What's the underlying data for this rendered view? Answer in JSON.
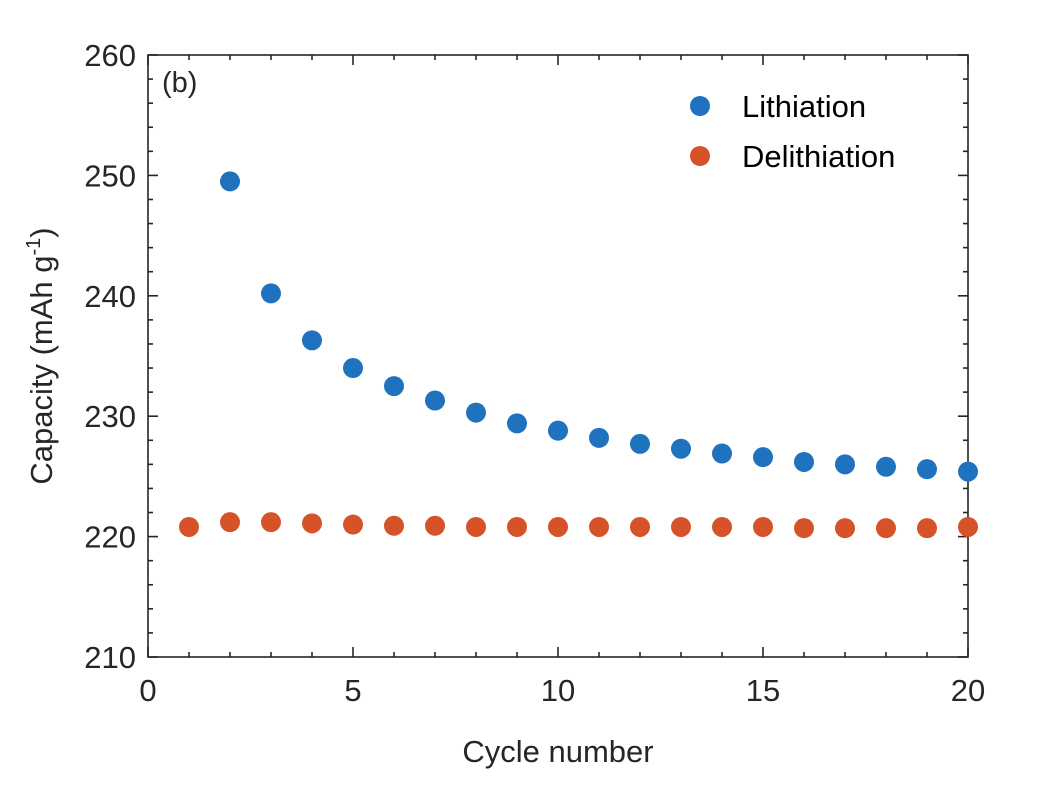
{
  "chart_data": {
    "type": "scatter",
    "panel_label": "(b)",
    "xlabel": "Cycle number",
    "ylabel_main": "Capacity (mAh g",
    "ylabel_sup": "-1",
    "ylabel_close": ")",
    "xlim": [
      0,
      20
    ],
    "ylim": [
      210,
      260
    ],
    "x_ticks": [
      0,
      5,
      10,
      15,
      20
    ],
    "y_ticks": [
      210,
      220,
      230,
      240,
      250,
      260
    ],
    "x_minor_step": 1,
    "y_minor_step": 2,
    "legend_position": "top-right",
    "series": [
      {
        "name": "Lithiation",
        "color": "#1f72bd",
        "x": [
          2,
          3,
          4,
          5,
          6,
          7,
          8,
          9,
          10,
          11,
          12,
          13,
          14,
          15,
          16,
          17,
          18,
          19,
          20
        ],
        "y": [
          249.5,
          240.2,
          236.3,
          234.0,
          232.5,
          231.3,
          230.3,
          229.4,
          228.8,
          228.2,
          227.7,
          227.3,
          226.9,
          226.6,
          226.2,
          226.0,
          225.8,
          225.6,
          225.4
        ]
      },
      {
        "name": "Delithiation",
        "color": "#d6532a",
        "x": [
          1,
          2,
          3,
          4,
          5,
          6,
          7,
          8,
          9,
          10,
          11,
          12,
          13,
          14,
          15,
          16,
          17,
          18,
          19,
          20
        ],
        "y": [
          220.8,
          221.2,
          221.2,
          221.1,
          221.0,
          220.9,
          220.9,
          220.8,
          220.8,
          220.8,
          220.8,
          220.8,
          220.8,
          220.8,
          220.8,
          220.7,
          220.7,
          220.7,
          220.7,
          220.8
        ]
      }
    ]
  }
}
